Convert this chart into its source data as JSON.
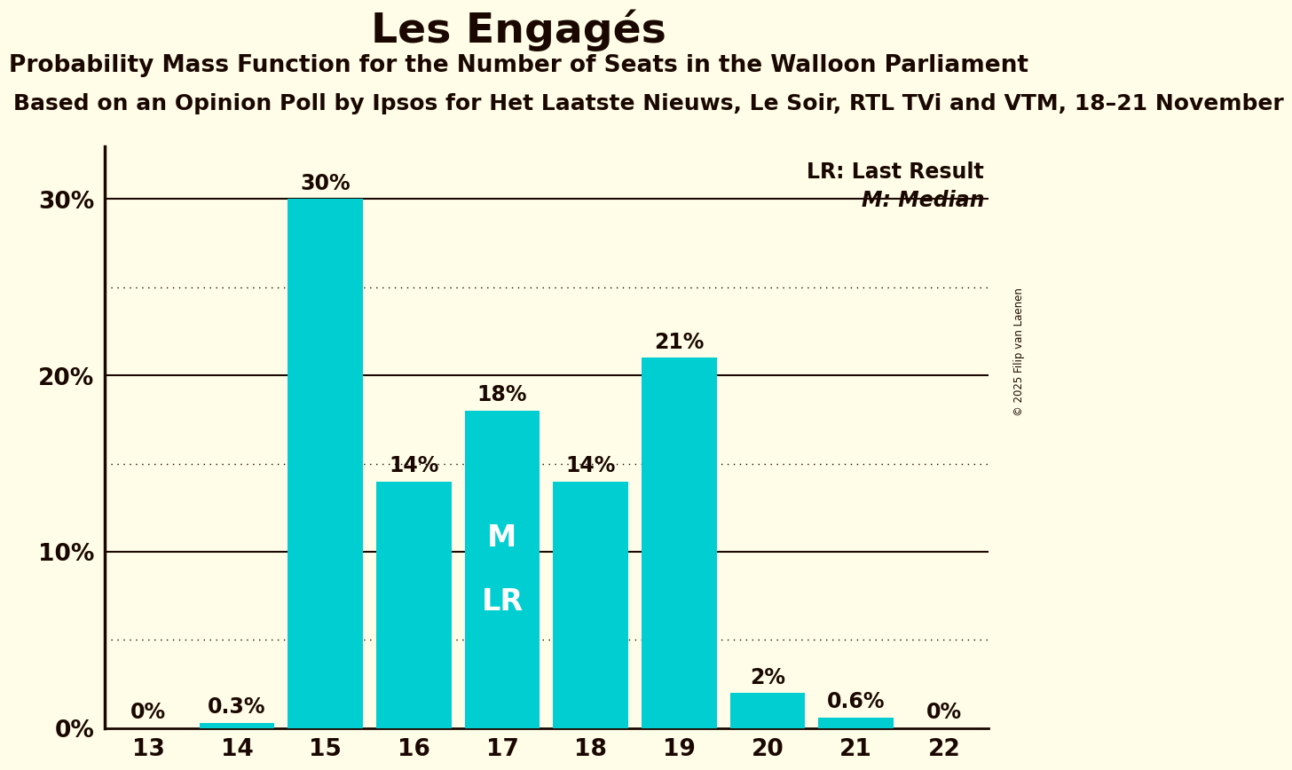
{
  "title": "Les Engagés",
  "subtitle": "Probability Mass Function for the Number of Seats in the Walloon Parliament",
  "subsubtitle": "Based on an Opinion Poll by Ipsos for Het Laatste Nieuws, Le Soir, RTL TVi and VTM, 18–21 November",
  "copyright": "© 2025 Filip van Laenen",
  "categories": [
    13,
    14,
    15,
    16,
    17,
    18,
    19,
    20,
    21,
    22
  ],
  "values": [
    0.0,
    0.3,
    30.0,
    14.0,
    18.0,
    14.0,
    21.0,
    2.0,
    0.6,
    0.0
  ],
  "bar_color": "#00CED1",
  "background_color": "#FFFDE8",
  "text_color": "#1A0800",
  "inner_label_color": "#FFFFFF",
  "median_bar": 17,
  "last_result_bar": 17,
  "ylim_max": 33,
  "yticks": [
    0,
    10,
    20,
    30
  ],
  "ytick_labels": [
    "0%",
    "10%",
    "20%",
    "30%"
  ],
  "dotted_lines": [
    5,
    15,
    25
  ],
  "solid_lines": [
    10,
    20,
    30
  ],
  "title_fontsize": 34,
  "subtitle_fontsize": 19,
  "subsubtitle_fontsize": 18,
  "bar_label_fontsize": 17,
  "tick_fontsize": 19,
  "legend_text_lr": "LR: Last Result",
  "legend_text_m": "M: Median",
  "legend_fontsize": 17,
  "inner_fontsize": 24
}
